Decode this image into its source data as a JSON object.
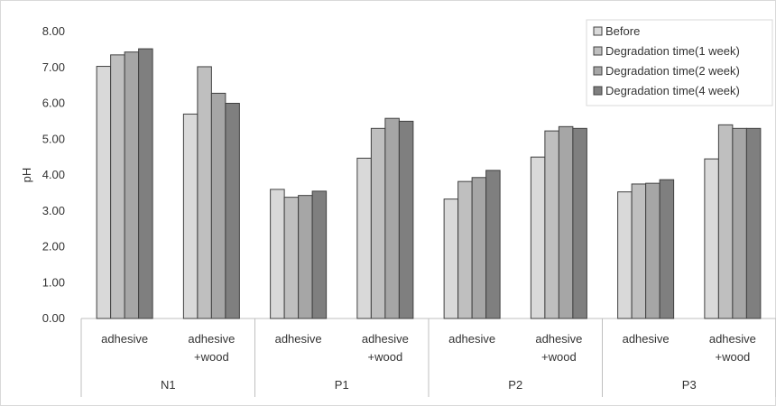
{
  "chart_data": {
    "type": "bar",
    "ylabel": "pH",
    "xlabel": "",
    "ylim": [
      0,
      8
    ],
    "ytick_labels": [
      "0.00",
      "1.00",
      "2.00",
      "3.00",
      "4.00",
      "5.00",
      "6.00",
      "7.00",
      "8.00"
    ],
    "grid": false,
    "legend_position": "top-right",
    "groups": [
      {
        "label": "N1",
        "categories": [
          "adhesive",
          "adhesive\n+wood"
        ]
      },
      {
        "label": "P1",
        "categories": [
          "adhesive",
          "adhesive\n+wood"
        ]
      },
      {
        "label": "P2",
        "categories": [
          "adhesive",
          "adhesive\n+wood"
        ]
      },
      {
        "label": "P3",
        "categories": [
          "adhesive",
          "adhesive\n+wood"
        ]
      }
    ],
    "series": [
      {
        "name": "Before",
        "color": "#d9d9d9",
        "values": [
          7.03,
          5.7,
          3.6,
          4.47,
          3.33,
          4.5,
          3.53,
          4.45
        ]
      },
      {
        "name": "Degradation time(1 week)",
        "color": "#bfbfbf",
        "values": [
          7.35,
          7.02,
          3.38,
          5.3,
          3.82,
          5.23,
          3.75,
          5.4
        ]
      },
      {
        "name": "Degradation time(2 week)",
        "color": "#a6a6a6",
        "values": [
          7.43,
          6.28,
          3.43,
          5.58,
          3.93,
          5.35,
          3.77,
          5.3
        ]
      },
      {
        "name": "Degradation time(4 week)",
        "color": "#7f7f7f",
        "values": [
          7.52,
          6.0,
          3.55,
          5.5,
          4.13,
          5.3,
          3.87,
          5.3
        ]
      }
    ]
  }
}
